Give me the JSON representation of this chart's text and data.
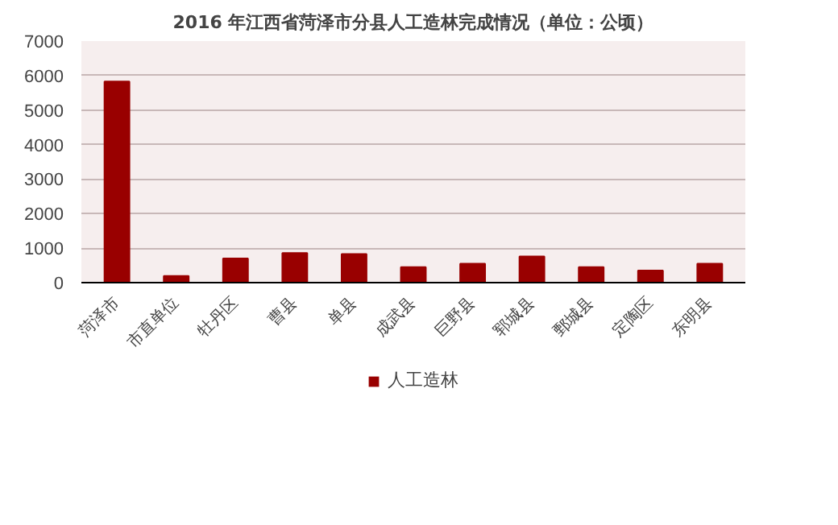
{
  "chart_data": {
    "type": "bar",
    "title": "2016 年江西省菏泽市分县人工造林完成情况（单位：公顷）",
    "categories": [
      "菏泽市",
      "市直单位",
      "牡丹区",
      "曹县",
      "单县",
      "成武县",
      "巨野县",
      "郓城县",
      "鄄城县",
      "定陶区",
      "东明县"
    ],
    "series": [
      {
        "name": "人工造林",
        "color": "#990000",
        "values": [
          5830,
          190,
          700,
          860,
          830,
          450,
          550,
          760,
          450,
          350,
          550
        ]
      }
    ],
    "ylim": [
      0,
      7000
    ],
    "yticks": [
      0,
      1000,
      2000,
      3000,
      4000,
      5000,
      6000,
      7000
    ],
    "grid": "y",
    "legend": "bottom"
  }
}
